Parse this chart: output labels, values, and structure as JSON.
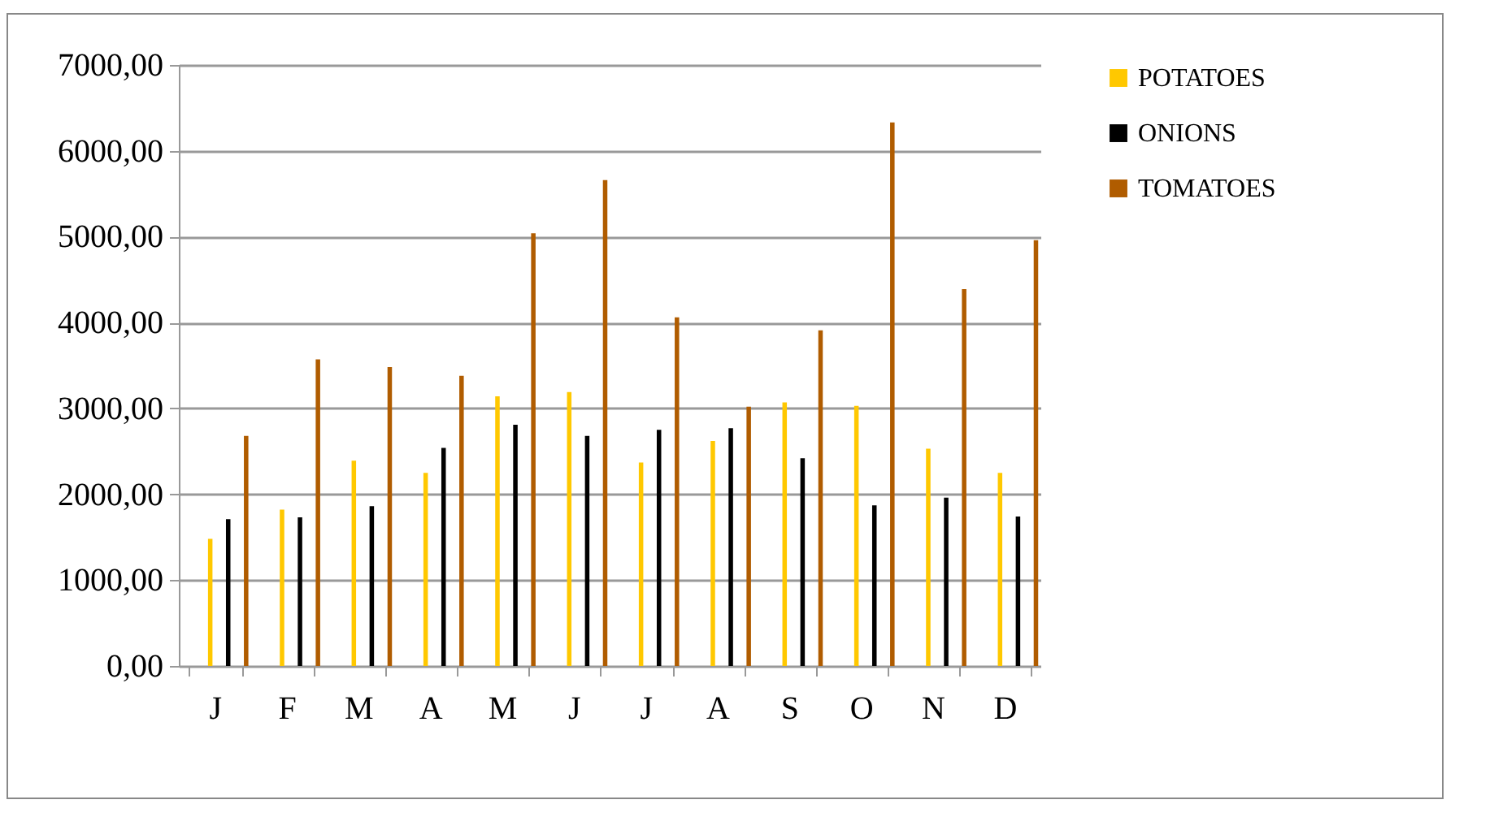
{
  "chart_data": {
    "type": "bar",
    "categories": [
      "J",
      "F",
      "M",
      "A",
      "M",
      "J",
      "J",
      "A",
      "S",
      "O",
      "N",
      "D"
    ],
    "series": [
      {
        "name": "POTATOES",
        "color": "#ffc800",
        "values": [
          1480,
          1820,
          2390,
          2250,
          3140,
          3190,
          2370,
          2620,
          3070,
          3030,
          2530,
          2250
        ]
      },
      {
        "name": "ONIONS",
        "color": "#000000",
        "values": [
          1710,
          1730,
          1860,
          2540,
          2810,
          2680,
          2750,
          2770,
          2420,
          1870,
          1960,
          1740
        ]
      },
      {
        "name": "TOMATOES",
        "color": "#b05c00",
        "values": [
          2680,
          3570,
          3480,
          3380,
          5040,
          5660,
          4060,
          3020,
          3910,
          6330,
          4390,
          4960
        ]
      }
    ],
    "ylim": [
      0,
      7000
    ],
    "yticks": [
      {
        "value": 0,
        "label": "0,00"
      },
      {
        "value": 1000,
        "label": "1000,00"
      },
      {
        "value": 2000,
        "label": "2000,00"
      },
      {
        "value": 3000,
        "label": "3000,00"
      },
      {
        "value": 4000,
        "label": "4000,00"
      },
      {
        "value": 5000,
        "label": "5000,00"
      },
      {
        "value": 6000,
        "label": "6000,00"
      },
      {
        "value": 7000,
        "label": "7000,00"
      }
    ],
    "grid": "y",
    "legend": "right"
  }
}
